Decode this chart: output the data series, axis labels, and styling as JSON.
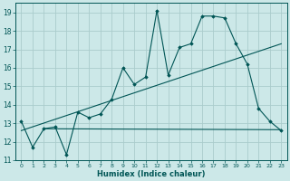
{
  "xlabel": "Humidex (Indice chaleur)",
  "xlim": [
    -0.5,
    23.5
  ],
  "ylim": [
    11,
    19.5
  ],
  "yticks": [
    11,
    12,
    13,
    14,
    15,
    16,
    17,
    18,
    19
  ],
  "xticks": [
    0,
    1,
    2,
    3,
    4,
    5,
    6,
    7,
    8,
    9,
    10,
    11,
    12,
    13,
    14,
    15,
    16,
    17,
    18,
    19,
    20,
    21,
    22,
    23
  ],
  "bg_color": "#cce8e8",
  "grid_color": "#aacccc",
  "line_color": "#005555",
  "main_line": {
    "x": [
      0,
      1,
      2,
      3,
      4,
      5,
      6,
      7,
      8,
      9,
      10,
      11,
      12,
      13,
      14,
      15,
      16,
      17,
      18,
      19,
      20,
      21,
      22,
      23
    ],
    "y": [
      13.1,
      11.7,
      12.7,
      12.8,
      11.3,
      13.6,
      13.3,
      13.5,
      14.3,
      16.0,
      15.1,
      15.5,
      19.1,
      15.6,
      17.1,
      17.3,
      18.8,
      18.8,
      18.7,
      17.3,
      16.2,
      13.8,
      13.1,
      12.6
    ]
  },
  "trend_line1": {
    "x": [
      0,
      23
    ],
    "y": [
      12.6,
      17.3
    ]
  },
  "trend_line2": {
    "x": [
      2,
      23
    ],
    "y": [
      12.7,
      12.65
    ]
  }
}
